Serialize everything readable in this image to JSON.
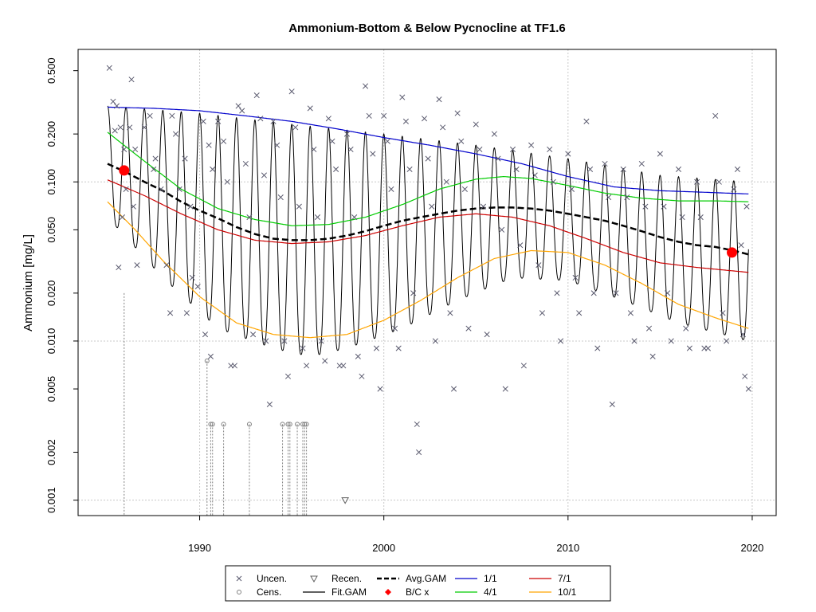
{
  "chart_data": {
    "type": "line",
    "title": "Ammonium-Bottom & Below Pycnocline at TF1.6",
    "xlabel": "",
    "ylabel": "Ammonium [mg/L]",
    "y_scale": "log",
    "xlim": [
      1983.4,
      2021.3
    ],
    "ylim": [
      0.0008,
      0.68
    ],
    "x_ticks": [
      1990,
      2000,
      2010,
      2020
    ],
    "x_tick_labels": [
      "1990",
      "2000",
      "2010",
      "2020"
    ],
    "y_ticks": [
      0.001,
      0.002,
      0.005,
      0.01,
      0.02,
      0.05,
      0.1,
      0.2,
      0.5
    ],
    "y_tick_labels": [
      "0.001",
      "0.002",
      "0.005",
      "0.010",
      "0.020",
      "0.050",
      "0.100",
      "0.200",
      "0.500"
    ],
    "grid": true,
    "legend_position": "bottom",
    "legend": [
      {
        "label": "Uncen.",
        "symbol": "x",
        "color": "#5a5a6e"
      },
      {
        "label": "Cens.",
        "symbol": "circle-open",
        "color": "#808080"
      },
      {
        "label": "Recen.",
        "symbol": "triangle-down-open",
        "color": "#606060"
      },
      {
        "label": "Fit.GAM",
        "symbol": "line",
        "color": "#000000"
      },
      {
        "label": "Avg.GAM",
        "symbol": "dashed-line",
        "color": "#000000"
      },
      {
        "label": "B/C x",
        "symbol": "diamond",
        "color": "#ff0000"
      },
      {
        "label": "1/1",
        "symbol": "line",
        "color": "#0000cc"
      },
      {
        "label": "4/1",
        "symbol": "line",
        "color": "#00cc00"
      },
      {
        "label": "7/1",
        "symbol": "line",
        "color": "#cc0000"
      },
      {
        "label": "10/1",
        "symbol": "line",
        "color": "#ffa500"
      }
    ],
    "series": [
      {
        "name": "1/1",
        "color": "#0000cc",
        "x": [
          1985,
          1987.5,
          1990,
          1992.5,
          1995,
          1997.5,
          2000,
          2002.5,
          2005,
          2007.5,
          2010,
          2012.5,
          2015,
          2017.5,
          2019.8
        ],
        "y": [
          0.295,
          0.29,
          0.28,
          0.26,
          0.24,
          0.215,
          0.19,
          0.17,
          0.15,
          0.13,
          0.108,
          0.093,
          0.088,
          0.086,
          0.084
        ]
      },
      {
        "name": "4/1",
        "color": "#00cc00",
        "x": [
          1985,
          1987,
          1989,
          1991,
          1993,
          1995,
          1997,
          1999,
          2001,
          2003,
          2005,
          2006.5,
          2008,
          2010,
          2012,
          2014,
          2016,
          2018,
          2019.8
        ],
        "y": [
          0.205,
          0.135,
          0.09,
          0.068,
          0.058,
          0.053,
          0.054,
          0.06,
          0.072,
          0.09,
          0.104,
          0.108,
          0.105,
          0.095,
          0.085,
          0.079,
          0.076,
          0.076,
          0.075
        ]
      },
      {
        "name": "7/1",
        "color": "#cc0000",
        "x": [
          1985,
          1987,
          1989,
          1991,
          1993,
          1995,
          1997,
          1999,
          2001,
          2003,
          2005,
          2007,
          2009,
          2011,
          2013,
          2015,
          2017,
          2019.8
        ],
        "y": [
          0.103,
          0.082,
          0.063,
          0.05,
          0.043,
          0.041,
          0.042,
          0.046,
          0.053,
          0.06,
          0.063,
          0.06,
          0.053,
          0.044,
          0.036,
          0.031,
          0.029,
          0.027
        ]
      },
      {
        "name": "10/1",
        "color": "#ffa500",
        "x": [
          1985,
          1986.5,
          1988,
          1990,
          1992,
          1994,
          1996,
          1998,
          2000,
          2002,
          2004,
          2006,
          2008,
          2010,
          2012,
          2014,
          2016,
          2018,
          2019.8
        ],
        "y": [
          0.075,
          0.05,
          0.032,
          0.019,
          0.013,
          0.011,
          0.0105,
          0.011,
          0.0135,
          0.018,
          0.025,
          0.033,
          0.037,
          0.036,
          0.03,
          0.023,
          0.017,
          0.014,
          0.012
        ]
      },
      {
        "name": "Avg.GAM",
        "color": "#000000",
        "x": [
          1985,
          1986,
          1987,
          1988,
          1989,
          1990,
          1991,
          1992,
          1993,
          1994,
          1995,
          1996,
          1997,
          1998,
          1999,
          2000,
          2001,
          2002,
          2003,
          2004,
          2005,
          2006,
          2007,
          2008,
          2009,
          2010,
          2011,
          2012,
          2013,
          2014,
          2015,
          2016,
          2017,
          2018,
          2019,
          2019.8
        ],
        "y": [
          0.13,
          0.115,
          0.1,
          0.088,
          0.075,
          0.066,
          0.059,
          0.052,
          0.047,
          0.044,
          0.043,
          0.043,
          0.044,
          0.046,
          0.049,
          0.053,
          0.057,
          0.06,
          0.063,
          0.066,
          0.068,
          0.069,
          0.069,
          0.068,
          0.066,
          0.063,
          0.06,
          0.057,
          0.053,
          0.049,
          0.045,
          0.042,
          0.04,
          0.039,
          0.037,
          0.035
        ]
      },
      {
        "name": "Fit.GAM",
        "color": "#000000",
        "type": "seasonal",
        "x_start": 1985,
        "x_end": 2019.8,
        "peak_x": [
          1985,
          1990,
          1995,
          2000,
          2005,
          2010,
          2015,
          2019.8
        ],
        "peak_y": [
          0.3,
          0.27,
          0.23,
          0.2,
          0.17,
          0.14,
          0.11,
          0.1
        ],
        "trough_x": [
          1985,
          1988,
          1991,
          1994,
          1996,
          1998,
          2001,
          2004,
          2007,
          2010,
          2013,
          2016,
          2019.8
        ],
        "trough_y": [
          0.06,
          0.025,
          0.012,
          0.009,
          0.008,
          0.009,
          0.012,
          0.018,
          0.025,
          0.024,
          0.018,
          0.013,
          0.01
        ]
      }
    ],
    "bc_points": [
      {
        "x": 1985.9,
        "y": 0.118
      },
      {
        "x": 2018.9,
        "y": 0.036
      }
    ],
    "uncensored_points": [
      [
        1985.1,
        0.52
      ],
      [
        1985.3,
        0.32
      ],
      [
        1985.5,
        0.3
      ],
      [
        1985.7,
        0.22
      ],
      [
        1985.4,
        0.21
      ],
      [
        1985.9,
        0.16
      ],
      [
        1986.3,
        0.44
      ],
      [
        1986.2,
        0.22
      ],
      [
        1986.5,
        0.16
      ],
      [
        1985.8,
        0.06
      ],
      [
        1986.0,
        0.09
      ],
      [
        1986.4,
        0.07
      ],
      [
        1985.6,
        0.029
      ],
      [
        1986.6,
        0.03
      ],
      [
        1987.0,
        0.22
      ],
      [
        1987.3,
        0.26
      ],
      [
        1987.6,
        0.14
      ],
      [
        1987.9,
        0.09
      ],
      [
        1988.2,
        0.03
      ],
      [
        1987.5,
        0.12
      ],
      [
        1988.5,
        0.26
      ],
      [
        1988.7,
        0.2
      ],
      [
        1988.9,
        0.09
      ],
      [
        1989.2,
        0.14
      ],
      [
        1989.5,
        0.07
      ],
      [
        1989.6,
        0.025
      ],
      [
        1989.3,
        0.015
      ],
      [
        1988.4,
        0.015
      ],
      [
        1989.9,
        0.022
      ],
      [
        1990.2,
        0.24
      ],
      [
        1990.5,
        0.17
      ],
      [
        1990.7,
        0.12
      ],
      [
        1990.3,
        0.011
      ],
      [
        1990.6,
        0.008
      ],
      [
        1991.0,
        0.24
      ],
      [
        1991.3,
        0.18
      ],
      [
        1991.5,
        0.1
      ],
      [
        1991.7,
        0.007
      ],
      [
        1991.9,
        0.007
      ],
      [
        1992.1,
        0.3
      ],
      [
        1992.3,
        0.28
      ],
      [
        1992.5,
        0.13
      ],
      [
        1992.7,
        0.06
      ],
      [
        1992.9,
        0.011
      ],
      [
        1993.1,
        0.35
      ],
      [
        1993.3,
        0.25
      ],
      [
        1993.5,
        0.11
      ],
      [
        1993.6,
        0.01
      ],
      [
        1993.8,
        0.004
      ],
      [
        1994.0,
        0.24
      ],
      [
        1994.2,
        0.17
      ],
      [
        1994.4,
        0.08
      ],
      [
        1994.6,
        0.01
      ],
      [
        1994.8,
        0.006
      ],
      [
        1995.0,
        0.37
      ],
      [
        1995.2,
        0.22
      ],
      [
        1995.4,
        0.07
      ],
      [
        1995.6,
        0.009
      ],
      [
        1995.8,
        0.007
      ],
      [
        1996.0,
        0.29
      ],
      [
        1996.2,
        0.16
      ],
      [
        1996.4,
        0.06
      ],
      [
        1996.6,
        0.01
      ],
      [
        1996.8,
        0.0075
      ],
      [
        1997.0,
        0.25
      ],
      [
        1997.2,
        0.18
      ],
      [
        1997.4,
        0.12
      ],
      [
        1997.6,
        0.007
      ],
      [
        1997.8,
        0.007
      ],
      [
        1998.0,
        0.2
      ],
      [
        1998.2,
        0.16
      ],
      [
        1998.4,
        0.06
      ],
      [
        1998.6,
        0.008
      ],
      [
        1998.8,
        0.006
      ],
      [
        1999.0,
        0.4
      ],
      [
        1999.2,
        0.26
      ],
      [
        1999.4,
        0.15
      ],
      [
        1999.6,
        0.009
      ],
      [
        1999.8,
        0.005
      ],
      [
        2000.0,
        0.26
      ],
      [
        2000.2,
        0.18
      ],
      [
        2000.4,
        0.09
      ],
      [
        2000.6,
        0.012
      ],
      [
        2000.8,
        0.009
      ],
      [
        2001.0,
        0.34
      ],
      [
        2001.2,
        0.24
      ],
      [
        2001.4,
        0.12
      ],
      [
        2001.6,
        0.02
      ],
      [
        2001.8,
        0.003
      ],
      [
        2001.9,
        0.002
      ],
      [
        2002.2,
        0.25
      ],
      [
        2002.4,
        0.14
      ],
      [
        2002.6,
        0.07
      ],
      [
        2002.8,
        0.01
      ],
      [
        2003.0,
        0.33
      ],
      [
        2003.2,
        0.22
      ],
      [
        2003.4,
        0.1
      ],
      [
        2003.6,
        0.015
      ],
      [
        2003.8,
        0.005
      ],
      [
        2004.0,
        0.27
      ],
      [
        2004.2,
        0.18
      ],
      [
        2004.4,
        0.09
      ],
      [
        2004.6,
        0.012
      ],
      [
        2005.0,
        0.23
      ],
      [
        2005.2,
        0.16
      ],
      [
        2005.4,
        0.07
      ],
      [
        2005.6,
        0.011
      ],
      [
        2006.0,
        0.2
      ],
      [
        2006.2,
        0.14
      ],
      [
        2006.4,
        0.05
      ],
      [
        2006.6,
        0.005
      ],
      [
        2007.0,
        0.16
      ],
      [
        2007.2,
        0.12
      ],
      [
        2007.4,
        0.04
      ],
      [
        2007.6,
        0.007
      ],
      [
        2008.0,
        0.17
      ],
      [
        2008.2,
        0.11
      ],
      [
        2008.4,
        0.03
      ],
      [
        2008.6,
        0.015
      ],
      [
        2009.0,
        0.16
      ],
      [
        2009.2,
        0.1
      ],
      [
        2009.4,
        0.02
      ],
      [
        2009.6,
        0.01
      ],
      [
        2010.0,
        0.15
      ],
      [
        2010.2,
        0.09
      ],
      [
        2010.4,
        0.025
      ],
      [
        2010.6,
        0.015
      ],
      [
        2011.0,
        0.24
      ],
      [
        2011.2,
        0.12
      ],
      [
        2011.4,
        0.02
      ],
      [
        2011.6,
        0.009
      ],
      [
        2012.0,
        0.13
      ],
      [
        2012.2,
        0.08
      ],
      [
        2012.4,
        0.004
      ],
      [
        2012.6,
        0.02
      ],
      [
        2013.0,
        0.12
      ],
      [
        2013.2,
        0.08
      ],
      [
        2013.4,
        0.015
      ],
      [
        2013.6,
        0.01
      ],
      [
        2014.0,
        0.13
      ],
      [
        2014.2,
        0.07
      ],
      [
        2014.4,
        0.012
      ],
      [
        2014.6,
        0.008
      ],
      [
        2015.0,
        0.15
      ],
      [
        2015.2,
        0.07
      ],
      [
        2015.4,
        0.02
      ],
      [
        2015.6,
        0.01
      ],
      [
        2016.0,
        0.12
      ],
      [
        2016.2,
        0.06
      ],
      [
        2016.4,
        0.012
      ],
      [
        2016.6,
        0.009
      ],
      [
        2017.0,
        0.1
      ],
      [
        2017.2,
        0.06
      ],
      [
        2017.4,
        0.009
      ],
      [
        2017.6,
        0.009
      ],
      [
        2018.0,
        0.26
      ],
      [
        2018.2,
        0.1
      ],
      [
        2018.4,
        0.015
      ],
      [
        2018.6,
        0.01
      ],
      [
        2019.0,
        0.09
      ],
      [
        2019.2,
        0.12
      ],
      [
        2019.4,
        0.04
      ],
      [
        2019.6,
        0.006
      ],
      [
        2019.8,
        0.005
      ],
      [
        2019.7,
        0.07
      ],
      [
        2019.5,
        0.011
      ]
    ],
    "censored_points": [
      [
        1990.4,
        0.0075
      ],
      [
        1990.6,
        0.003
      ],
      [
        1990.7,
        0.003
      ],
      [
        1991.3,
        0.003
      ],
      [
        1992.7,
        0.003
      ],
      [
        1994.5,
        0.003
      ],
      [
        1994.8,
        0.003
      ],
      [
        1994.9,
        0.003
      ],
      [
        1995.3,
        0.003
      ],
      [
        1995.6,
        0.003
      ],
      [
        1995.7,
        0.003
      ],
      [
        1995.8,
        0.003
      ]
    ],
    "censored_ranges": [
      [
        1985.9,
        0.02
      ],
      [
        1990.4,
        0.0075
      ],
      [
        1990.6,
        0.003
      ],
      [
        1990.7,
        0.003
      ],
      [
        1991.3,
        0.003
      ],
      [
        1992.7,
        0.003
      ],
      [
        1994.5,
        0.003
      ],
      [
        1994.8,
        0.003
      ],
      [
        1994.9,
        0.003
      ],
      [
        1995.3,
        0.003
      ],
      [
        1995.6,
        0.003
      ],
      [
        1995.7,
        0.003
      ],
      [
        1995.8,
        0.003
      ]
    ],
    "recensored_points": [
      [
        1997.9,
        0.001
      ]
    ]
  }
}
